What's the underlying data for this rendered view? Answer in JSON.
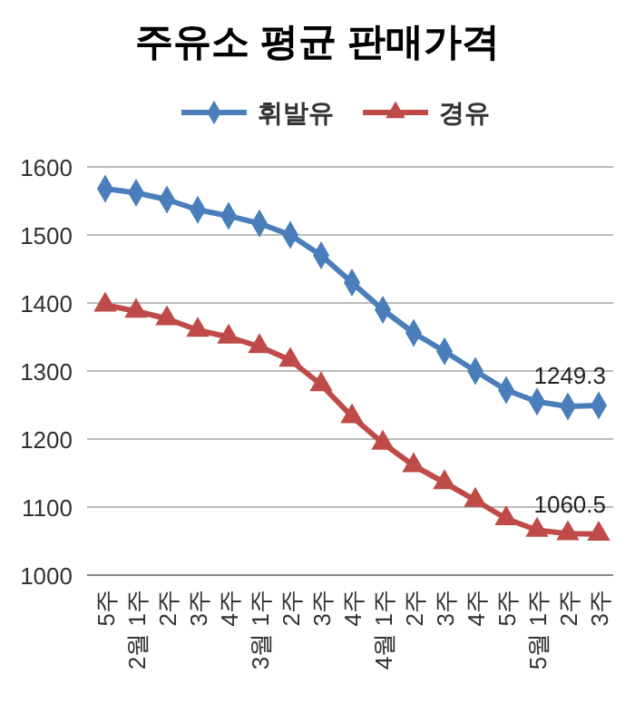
{
  "chart_data": {
    "type": "line",
    "title": "주유소 평균 판매가격",
    "categories": [
      "5주",
      "2월 1주",
      "2주",
      "3주",
      "4주",
      "3월 1주",
      "2주",
      "3주",
      "4주",
      "4월 1주",
      "2주",
      "3주",
      "4주",
      "5주",
      "5월 1주",
      "2주",
      "3주"
    ],
    "series": [
      {
        "name": "휘발유",
        "color": "#4a7ebb",
        "marker": "diamond",
        "values": [
          1568,
          1562,
          1552,
          1537,
          1528,
          1517,
          1500,
          1470,
          1430,
          1390,
          1356,
          1329,
          1300,
          1272,
          1255,
          1248,
          1249.3
        ],
        "value_labels": [
          null,
          null,
          null,
          null,
          null,
          null,
          null,
          null,
          null,
          null,
          null,
          null,
          null,
          null,
          null,
          null,
          "1249.3"
        ]
      },
      {
        "name": "경유",
        "color": "#be4b48",
        "marker": "triangle",
        "values": [
          1397,
          1388,
          1377,
          1360,
          1350,
          1336,
          1316,
          1280,
          1233,
          1194,
          1161,
          1136,
          1110,
          1083,
          1066,
          1061,
          1060.5
        ],
        "value_labels": [
          null,
          null,
          null,
          null,
          null,
          null,
          null,
          null,
          null,
          null,
          null,
          null,
          null,
          null,
          null,
          null,
          "1060.5"
        ]
      }
    ],
    "ylim": [
      1000,
      1600
    ],
    "yticks": [
      1000,
      1100,
      1200,
      1300,
      1400,
      1500,
      1600
    ],
    "grid": "y",
    "legend": "top",
    "line_style": "solid"
  }
}
